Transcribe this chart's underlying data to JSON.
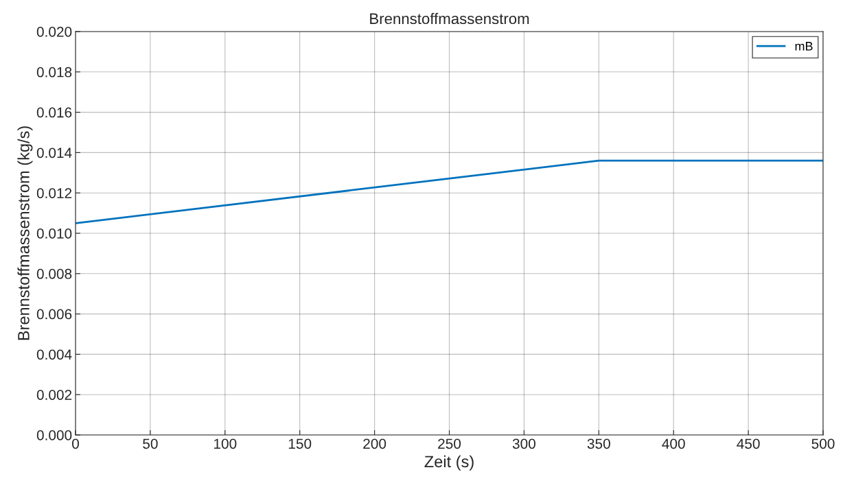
{
  "chart_data": {
    "type": "line",
    "title": "Brennstoffmassenstrom",
    "xlabel": "Zeit (s)",
    "ylabel": "Brennstoffmassenstrom (kg/s)",
    "x": [
      0,
      350,
      500
    ],
    "series": [
      {
        "name": "mB",
        "color": "#0072bd",
        "values": [
          0.0105,
          0.0136,
          0.0136
        ]
      }
    ],
    "xlim": [
      0,
      500
    ],
    "xticks": [
      0,
      50,
      100,
      150,
      200,
      250,
      300,
      350,
      400,
      450,
      500
    ],
    "ylim": [
      0,
      0.02
    ],
    "yticks": [
      {
        "value": 0,
        "label": "0.000"
      },
      {
        "value": 0.002,
        "label": "0.002"
      },
      {
        "value": 0.004,
        "label": "0.004"
      },
      {
        "value": 0.006,
        "label": "0.006"
      },
      {
        "value": 0.008,
        "label": "0.008"
      },
      {
        "value": 0.01,
        "label": "0.010"
      },
      {
        "value": 0.012,
        "label": "0.012"
      },
      {
        "value": 0.014,
        "label": "0.014"
      },
      {
        "value": 0.016,
        "label": "0.016"
      },
      {
        "value": 0.018,
        "label": "0.018"
      },
      {
        "value": 0.02,
        "label": "0.020"
      }
    ],
    "grid": true,
    "legend": "top right",
    "marker": "none",
    "line_style": "solid"
  }
}
